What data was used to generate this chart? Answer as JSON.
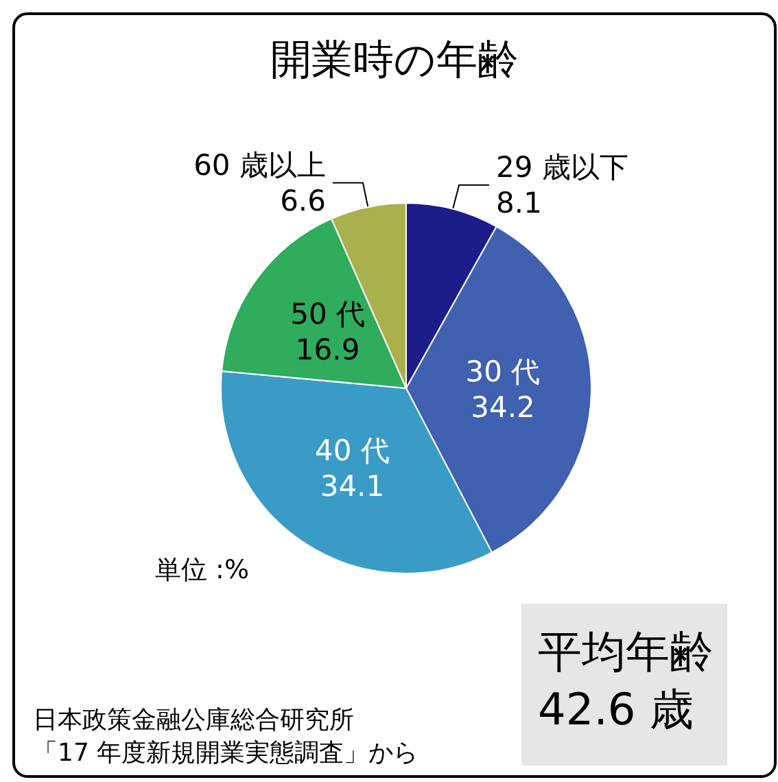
{
  "chart_data": {
    "type": "pie",
    "title": "開業時の年齢",
    "categories": [
      "29 歳以下",
      "30 代",
      "40 代",
      "50 代",
      "60 歳以上"
    ],
    "values": [
      8.1,
      34.2,
      34.1,
      16.9,
      6.6
    ],
    "colors": [
      "#1c1c8a",
      "#4060b0",
      "#3a9cc6",
      "#2fac5c",
      "#a9b04c"
    ],
    "data_labels": true,
    "annotations": [
      "単位 :%",
      "平均年齢\n42.6 歳",
      "日本政策金融公庫総合研究所",
      "「17 年度新規開業実態調査」から"
    ]
  }
}
